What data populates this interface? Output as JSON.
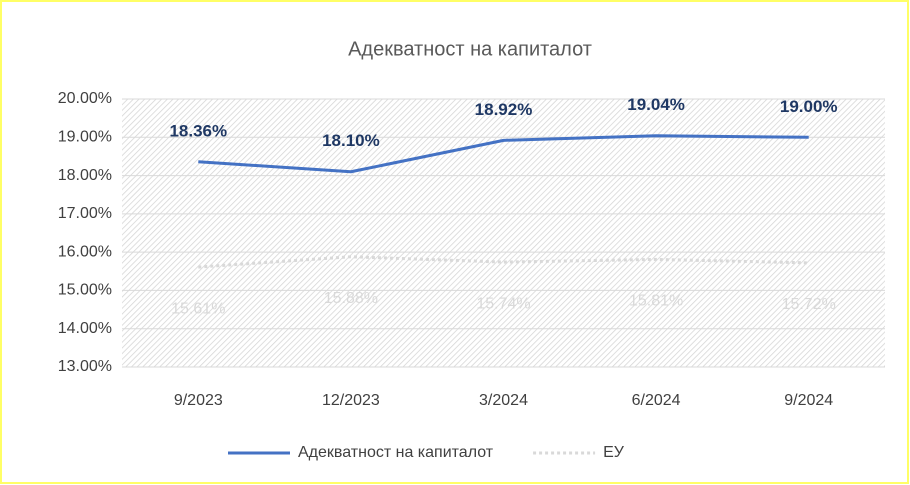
{
  "chart_data": {
    "type": "line",
    "title": "Адекватност на капиталот",
    "categories": [
      "9/2023",
      "12/2023",
      "3/2024",
      "6/2024",
      "9/2024"
    ],
    "series": [
      {
        "name": "Адекватност на капиталот",
        "color": "#4472c4",
        "values": [
          18.36,
          18.1,
          18.92,
          19.04,
          19.0
        ],
        "value_labels": [
          "18.36%",
          "18.10%",
          "18.92%",
          "19.04%",
          "19.00%"
        ],
        "label_color": "#1f3864",
        "dash": "solid"
      },
      {
        "name": "ЕУ",
        "color": "#d9d9d9",
        "values": [
          15.61,
          15.88,
          15.74,
          15.81,
          15.72
        ],
        "value_labels": [
          "15.61%",
          "15.88%",
          "15.74%",
          "15.81%",
          "15.72%"
        ],
        "label_color": "#d9d9d9",
        "dash": "dotted"
      }
    ],
    "ylim": [
      13,
      20
    ],
    "yticks": [
      {
        "value": 13,
        "label": "13.00%"
      },
      {
        "value": 14,
        "label": "14.00%"
      },
      {
        "value": 15,
        "label": "15.00%"
      },
      {
        "value": 16,
        "label": "16.00%"
      },
      {
        "value": 17,
        "label": "17.00%"
      },
      {
        "value": 18,
        "label": "18.00%"
      },
      {
        "value": 19,
        "label": "19.00%"
      },
      {
        "value": 20,
        "label": "20.00%"
      }
    ],
    "grid": true,
    "legend": "bottom"
  }
}
